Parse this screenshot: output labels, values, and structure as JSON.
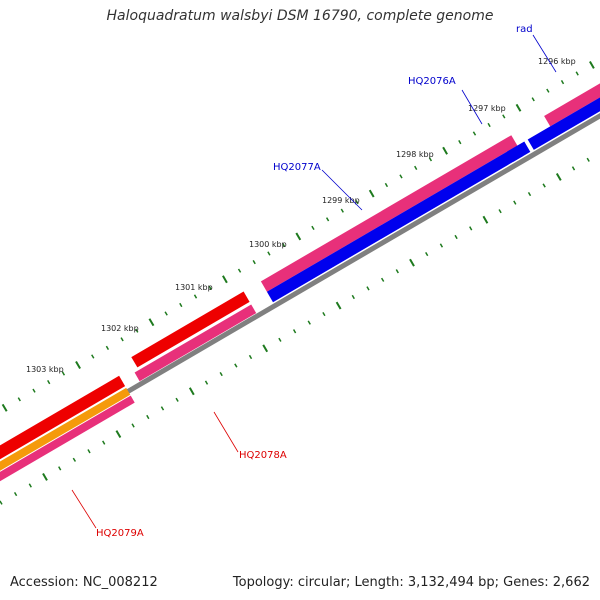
{
  "title": "Haloquadratum walsbyi DSM 16790, complete genome",
  "footer": {
    "accession": "Accession: NC_008212",
    "summary": "Topology: circular; Length: 3,132,494 bp; Genes: 2,662"
  },
  "colors": {
    "backbone": "#808080",
    "ticks": "#1e7a1e",
    "forward_cds": "#e8307a",
    "reverse_cds": "#0000ee",
    "rna": "#ee0000",
    "orange_cds": "#f59a0b",
    "label_blue": "#0000cc",
    "label_red": "#dd0000"
  },
  "ticks": [
    {
      "label": "1296 kbp"
    },
    {
      "label": "1297 kbp"
    },
    {
      "label": "1298 kbp"
    },
    {
      "label": "1299 kbp"
    },
    {
      "label": "1300 kbp"
    },
    {
      "label": "1301 kbp"
    },
    {
      "label": "1302 kbp"
    },
    {
      "label": "1303 kbp"
    }
  ],
  "gene_labels": [
    {
      "text": "rad",
      "color": "label_blue"
    },
    {
      "text": "HQ2076A",
      "color": "label_blue"
    },
    {
      "text": "HQ2077A",
      "color": "label_blue"
    },
    {
      "text": "HQ2078A",
      "color": "label_red"
    },
    {
      "text": "HQ2079A",
      "color": "label_red"
    }
  ]
}
